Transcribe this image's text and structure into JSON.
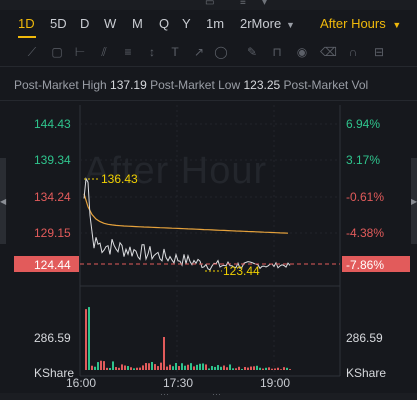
{
  "periods": [
    "1D",
    "5D",
    "D",
    "W",
    "M",
    "Q",
    "Y",
    "1m",
    "2rMore"
  ],
  "active_period": "1D",
  "session_dropdown": "After Hours",
  "post_market": {
    "high_label": "Post-Market High",
    "high_value": "137.19",
    "low_label": "Post-Market Low",
    "low_value": "123.25",
    "vol_label": "Post-Market Vol"
  },
  "watermark": "After Hour",
  "chart_data": {
    "type": "line",
    "price_axis_labels": [
      "144.43",
      "139.34",
      "134.24",
      "129.15",
      "124.44"
    ],
    "percent_axis_labels": [
      "6.94%",
      "3.17%",
      "-0.61%",
      "-4.38%",
      "-7.86%"
    ],
    "current_price": "124.44",
    "current_percent": "-7.86%",
    "high_annotation": "136.43",
    "low_annotation": "123.44",
    "volume_axis_label": "286.59",
    "volume_indicator": "KShare",
    "x_ticks": [
      "16:00",
      "17:30",
      "19:00"
    ],
    "colors": {
      "price": "#dcdde0",
      "average": "#e6a23c",
      "up": "#2fc48d",
      "down": "#e25b5b",
      "accent": "#f0b90b",
      "annotation": "#f0d000"
    }
  }
}
